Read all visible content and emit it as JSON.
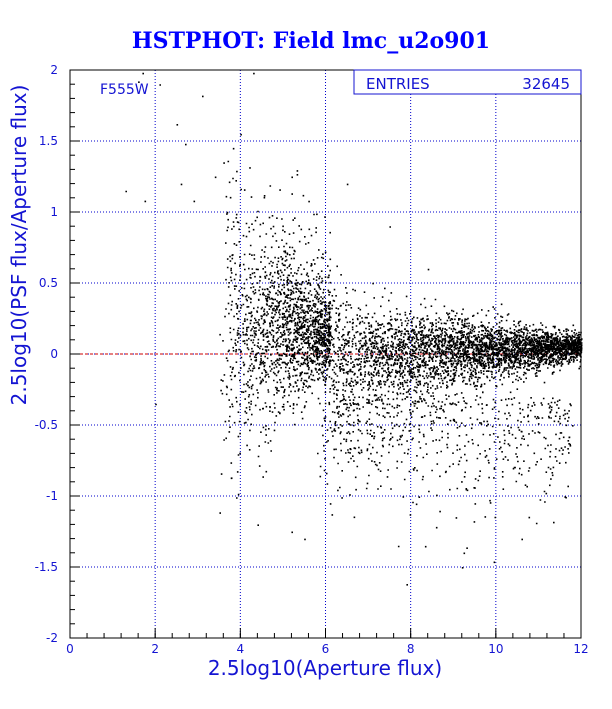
{
  "chart_data": {
    "type": "scatter",
    "title": "HSTPHOT: Field lmc_u2o901",
    "xlabel": "2.5log10(Aperture flux)",
    "ylabel": "2.5log10(PSF flux/Aperture flux)",
    "filter_label": "F555W",
    "stats": {
      "label": "ENTRIES",
      "value": "32645"
    },
    "xlim": [
      0,
      12
    ],
    "ylim": [
      -2,
      2
    ],
    "x_ticks": [
      0,
      2,
      4,
      6,
      8,
      10,
      12
    ],
    "y_ticks": [
      -2,
      -1.5,
      -1,
      -0.5,
      0,
      0.5,
      1,
      1.5,
      2
    ],
    "x_tick_labels": [
      "0",
      "2",
      "4",
      "6",
      "8",
      "10",
      "12"
    ],
    "y_tick_labels": [
      "-2",
      "-1.5",
      "-1",
      "-0.5",
      "0",
      "0.5",
      "1",
      "1.5",
      "2"
    ],
    "grid": true,
    "reference_line_y": 0,
    "n_points": 32645,
    "sample_points": [
      [
        1.7,
        1.98
      ],
      [
        1.6,
        1.92
      ],
      [
        2.1,
        1.9
      ],
      [
        3.1,
        1.82
      ],
      [
        1.3,
        1.15
      ],
      [
        1.75,
        1.08
      ],
      [
        2.5,
        1.62
      ],
      [
        2.7,
        1.48
      ],
      [
        2.6,
        1.2
      ],
      [
        2.9,
        1.08
      ],
      [
        3.4,
        1.25
      ],
      [
        3.6,
        1.35
      ],
      [
        4.0,
        1.55
      ],
      [
        4.3,
        1.98
      ],
      [
        4.55,
        1.12
      ],
      [
        5.2,
        1.25
      ],
      [
        6.5,
        1.2
      ],
      [
        7.5,
        0.9
      ],
      [
        8.4,
        0.6
      ],
      [
        2.0,
        -0.35
      ],
      [
        3.6,
        -0.6
      ],
      [
        4.4,
        -1.2
      ],
      [
        5.2,
        -1.25
      ],
      [
        6.1,
        -1.05
      ],
      [
        7.0,
        -0.85
      ],
      [
        7.7,
        -1.35
      ],
      [
        7.9,
        -1.62
      ],
      [
        8.9,
        -0.95
      ],
      [
        9.5,
        -1.05
      ],
      [
        10.6,
        -1.3
      ],
      [
        9.2,
        -1.5
      ],
      [
        11.5,
        -0.55
      ],
      [
        5.5,
        -1.3
      ],
      [
        6.7,
        -0.95
      ]
    ],
    "density_model": {
      "description_free": true,
      "core_x": [
        5.9,
        12.0
      ],
      "mean_y_at_core_start": 0.0,
      "mean_y_at_core_end": 0.06,
      "scatter_at_core_start": 0.2,
      "scatter_at_core_end": 0.04
    }
  },
  "colors": {
    "frame": "#000000",
    "axis_text": "#1414d2",
    "title": "#0000ff",
    "grid": "#0000cc",
    "points": "#000000",
    "zero_line": "#cc0000",
    "background": "#ffffff"
  }
}
